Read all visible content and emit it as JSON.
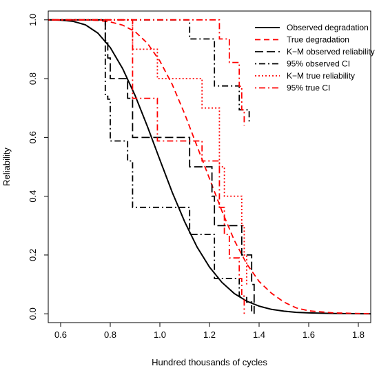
{
  "chart_data": {
    "type": "line",
    "title": "",
    "xlabel": "Hundred thousands of cycles",
    "ylabel": "Reliability",
    "xlim": [
      0.55,
      1.85
    ],
    "ylim": [
      -0.03,
      1.03
    ],
    "x_ticks": [
      0.6,
      0.8,
      1.0,
      1.2,
      1.4,
      1.6,
      1.8
    ],
    "x_tick_labels": [
      "0.6",
      "0.8",
      "1.0",
      "1.2",
      "1.4",
      "1.6",
      "1.8"
    ],
    "y_ticks": [
      0.0,
      0.2,
      0.4,
      0.6,
      0.8,
      1.0
    ],
    "y_tick_labels": [
      "0.0",
      "0.2",
      "0.4",
      "0.6",
      "0.8",
      "1.0"
    ],
    "grid": false,
    "legend_position": "top-right",
    "series": [
      {
        "name": "Observed degradation",
        "color": "#000000",
        "style": "solid",
        "kind": "curve",
        "points": [
          [
            0.55,
            1.0
          ],
          [
            0.6,
            0.999
          ],
          [
            0.65,
            0.995
          ],
          [
            0.7,
            0.983
          ],
          [
            0.75,
            0.955
          ],
          [
            0.8,
            0.906
          ],
          [
            0.85,
            0.834
          ],
          [
            0.9,
            0.743
          ],
          [
            0.95,
            0.637
          ],
          [
            1.0,
            0.524
          ],
          [
            1.05,
            0.413
          ],
          [
            1.1,
            0.313
          ],
          [
            1.15,
            0.227
          ],
          [
            1.2,
            0.159
          ],
          [
            1.25,
            0.107
          ],
          [
            1.3,
            0.069
          ],
          [
            1.35,
            0.043
          ],
          [
            1.4,
            0.026
          ],
          [
            1.45,
            0.015
          ],
          [
            1.5,
            0.009
          ],
          [
            1.55,
            0.005
          ],
          [
            1.6,
            0.003
          ],
          [
            1.7,
            0.001
          ],
          [
            1.85,
            0.0
          ]
        ]
      },
      {
        "name": "True degradation",
        "color": "#ff0000",
        "style": "dashed",
        "kind": "curve",
        "points": [
          [
            0.55,
            1.0
          ],
          [
            0.7,
            1.0
          ],
          [
            0.75,
            0.998
          ],
          [
            0.8,
            0.993
          ],
          [
            0.85,
            0.982
          ],
          [
            0.9,
            0.96
          ],
          [
            0.95,
            0.92
          ],
          [
            1.0,
            0.86
          ],
          [
            1.05,
            0.78
          ],
          [
            1.1,
            0.68
          ],
          [
            1.15,
            0.57
          ],
          [
            1.2,
            0.46
          ],
          [
            1.25,
            0.35
          ],
          [
            1.3,
            0.25
          ],
          [
            1.35,
            0.17
          ],
          [
            1.4,
            0.11
          ],
          [
            1.45,
            0.07
          ],
          [
            1.5,
            0.04
          ],
          [
            1.55,
            0.02
          ],
          [
            1.6,
            0.01
          ],
          [
            1.7,
            0.003
          ],
          [
            1.85,
            0.0
          ]
        ]
      },
      {
        "name": "K−M observed reliability",
        "color": "#000000",
        "style": "longdash",
        "kind": "step",
        "points": [
          [
            0.55,
            1.0
          ],
          [
            0.78,
            1.0
          ],
          [
            0.78,
            0.93
          ],
          [
            0.79,
            0.93
          ],
          [
            0.79,
            0.87
          ],
          [
            0.8,
            0.87
          ],
          [
            0.8,
            0.8
          ],
          [
            0.87,
            0.8
          ],
          [
            0.87,
            0.733
          ],
          [
            0.89,
            0.733
          ],
          [
            0.89,
            0.6
          ],
          [
            1.12,
            0.6
          ],
          [
            1.12,
            0.5
          ],
          [
            1.21,
            0.5
          ],
          [
            1.21,
            0.4
          ],
          [
            1.22,
            0.4
          ],
          [
            1.22,
            0.3
          ],
          [
            1.33,
            0.3
          ],
          [
            1.33,
            0.2
          ],
          [
            1.37,
            0.2
          ],
          [
            1.37,
            0.1
          ],
          [
            1.38,
            0.1
          ],
          [
            1.38,
            0.0
          ]
        ]
      },
      {
        "name": "95% observed CI",
        "color": "#000000",
        "style": "dotdash",
        "kind": "step",
        "points": [
          [
            0.55,
            1.0
          ],
          [
            0.78,
            1.0
          ],
          [
            0.78,
            0.74
          ],
          [
            0.79,
            0.74
          ],
          [
            0.79,
            0.73
          ],
          [
            0.8,
            0.73
          ],
          [
            0.8,
            0.588
          ],
          [
            0.87,
            0.588
          ],
          [
            0.87,
            0.52
          ],
          [
            0.89,
            0.52
          ],
          [
            0.89,
            0.362
          ],
          [
            1.12,
            0.362
          ],
          [
            1.12,
            0.27
          ],
          [
            1.22,
            0.27
          ],
          [
            1.22,
            0.12
          ],
          [
            1.32,
            0.12
          ],
          [
            1.32,
            0.06
          ],
          [
            1.35,
            0.06
          ],
          [
            1.35,
            0.04
          ],
          [
            1.37,
            0.04
          ],
          [
            1.37,
            0.0
          ]
        ]
      },
      {
        "name": "",
        "color": "#000000",
        "style": "dotdash",
        "kind": "step",
        "points": [
          [
            0.55,
            1.0
          ],
          [
            1.12,
            1.0
          ],
          [
            1.12,
            0.935
          ],
          [
            1.22,
            0.935
          ],
          [
            1.22,
            0.775
          ],
          [
            1.32,
            0.775
          ],
          [
            1.32,
            0.694
          ],
          [
            1.36,
            0.694
          ],
          [
            1.36,
            0.645
          ]
        ]
      },
      {
        "name": "K−M true reliability",
        "color": "#ff0000",
        "style": "dotted",
        "kind": "step",
        "points": [
          [
            0.55,
            1.0
          ],
          [
            0.89,
            1.0
          ],
          [
            0.89,
            0.9
          ],
          [
            0.99,
            0.9
          ],
          [
            0.99,
            0.8
          ],
          [
            1.17,
            0.8
          ],
          [
            1.17,
            0.7
          ],
          [
            1.24,
            0.7
          ],
          [
            1.24,
            0.5
          ],
          [
            1.26,
            0.5
          ],
          [
            1.26,
            0.4
          ],
          [
            1.28,
            0.4
          ],
          [
            1.28,
            0.4
          ],
          [
            1.33,
            0.4
          ],
          [
            1.33,
            0.3
          ],
          [
            1.34,
            0.3
          ],
          [
            1.34,
            0.2
          ],
          [
            1.35,
            0.2
          ],
          [
            1.35,
            0.1
          ]
        ]
      },
      {
        "name": "95% true CI",
        "color": "#ff0000",
        "style": "dotdash",
        "kind": "step",
        "points": [
          [
            0.55,
            1.0
          ],
          [
            1.24,
            1.0
          ],
          [
            1.24,
            0.935
          ],
          [
            1.28,
            0.935
          ],
          [
            1.28,
            0.855
          ],
          [
            1.32,
            0.855
          ],
          [
            1.32,
            0.774
          ],
          [
            1.33,
            0.774
          ],
          [
            1.33,
            0.694
          ],
          [
            1.34,
            0.694
          ],
          [
            1.34,
            0.64
          ]
        ]
      },
      {
        "name": "",
        "color": "#ff0000",
        "style": "dotdash",
        "kind": "step",
        "points": [
          [
            0.55,
            1.0
          ],
          [
            0.89,
            1.0
          ],
          [
            0.89,
            0.733
          ],
          [
            0.99,
            0.733
          ],
          [
            0.99,
            0.588
          ],
          [
            1.17,
            0.588
          ],
          [
            1.17,
            0.52
          ],
          [
            1.24,
            0.52
          ],
          [
            1.24,
            0.362
          ],
          [
            1.26,
            0.362
          ],
          [
            1.26,
            0.27
          ],
          [
            1.28,
            0.27
          ],
          [
            1.28,
            0.19
          ],
          [
            1.32,
            0.19
          ],
          [
            1.32,
            0.12
          ],
          [
            1.33,
            0.12
          ],
          [
            1.33,
            0.06
          ],
          [
            1.34,
            0.06
          ],
          [
            1.34,
            0.0
          ]
        ]
      }
    ]
  }
}
